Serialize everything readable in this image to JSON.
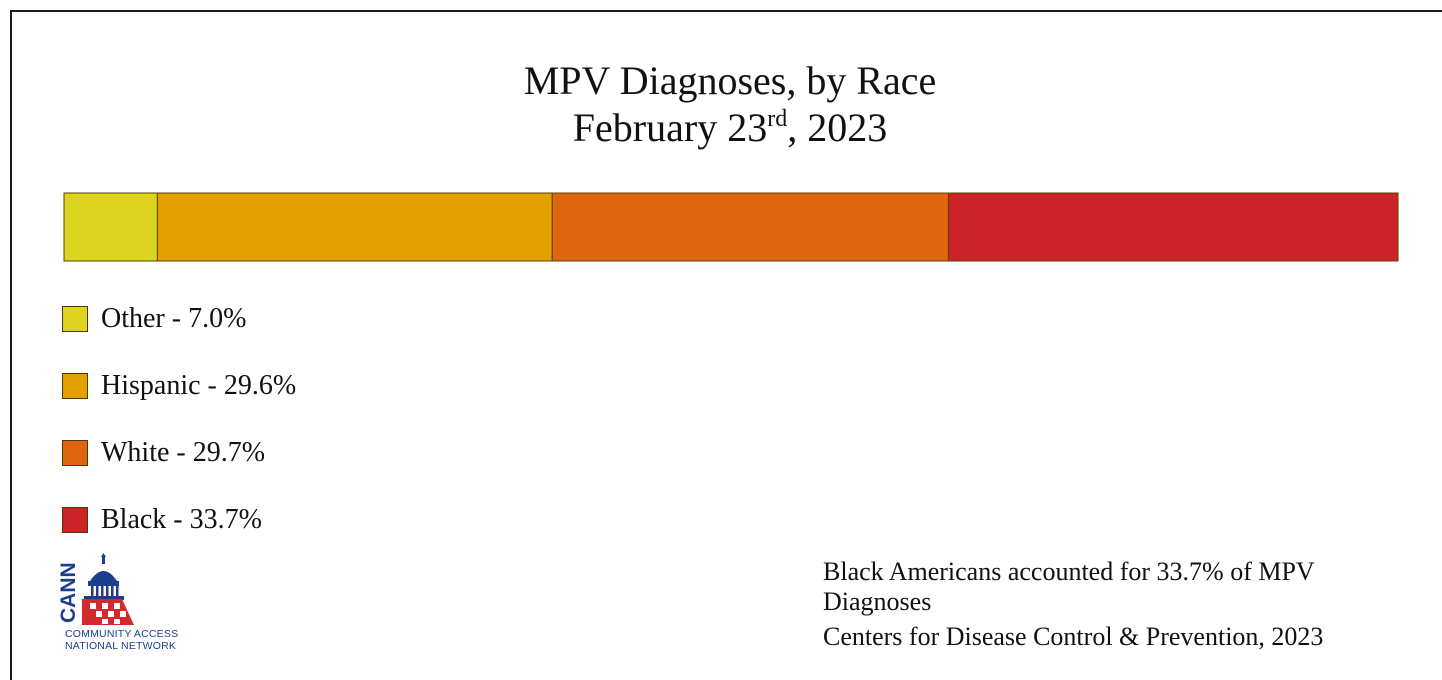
{
  "title": {
    "line1": "MPV Diagnoses, by Race",
    "line2_prefix": "February 23",
    "line2_sup": "rd",
    "line2_suffix": ", 2023"
  },
  "chart_data": {
    "type": "bar",
    "orientation": "horizontal-stacked",
    "title": "MPV Diagnoses, by Race February 23rd, 2023",
    "unit": "%",
    "categories": [
      "Other",
      "Hispanic",
      "White",
      "Black"
    ],
    "values": [
      7.0,
      29.6,
      29.7,
      33.7
    ],
    "colors": [
      "#dcd420",
      "#e3a100",
      "#e06510",
      "#cc2329"
    ],
    "legend": [
      {
        "label": "Other - 7.0%",
        "color": "#dcd420"
      },
      {
        "label": "Hispanic - 29.6%",
        "color": "#e3a100"
      },
      {
        "label": "White - 29.7%",
        "color": "#e06510"
      },
      {
        "label": "Black - 33.7%",
        "color": "#cc2329"
      }
    ],
    "legend_position": "bottom-left",
    "grid": false
  },
  "logo": {
    "wordmark": "CANN",
    "line1": "COMMUNITY ACCESS",
    "line2": "NATIONAL NETWORK",
    "color": "#1d3e8f"
  },
  "note": {
    "line1": "Black Americans accounted for 33.7% of MPV",
    "line2": "Diagnoses"
  },
  "source": "Centers for Disease Control & Prevention, 2023"
}
